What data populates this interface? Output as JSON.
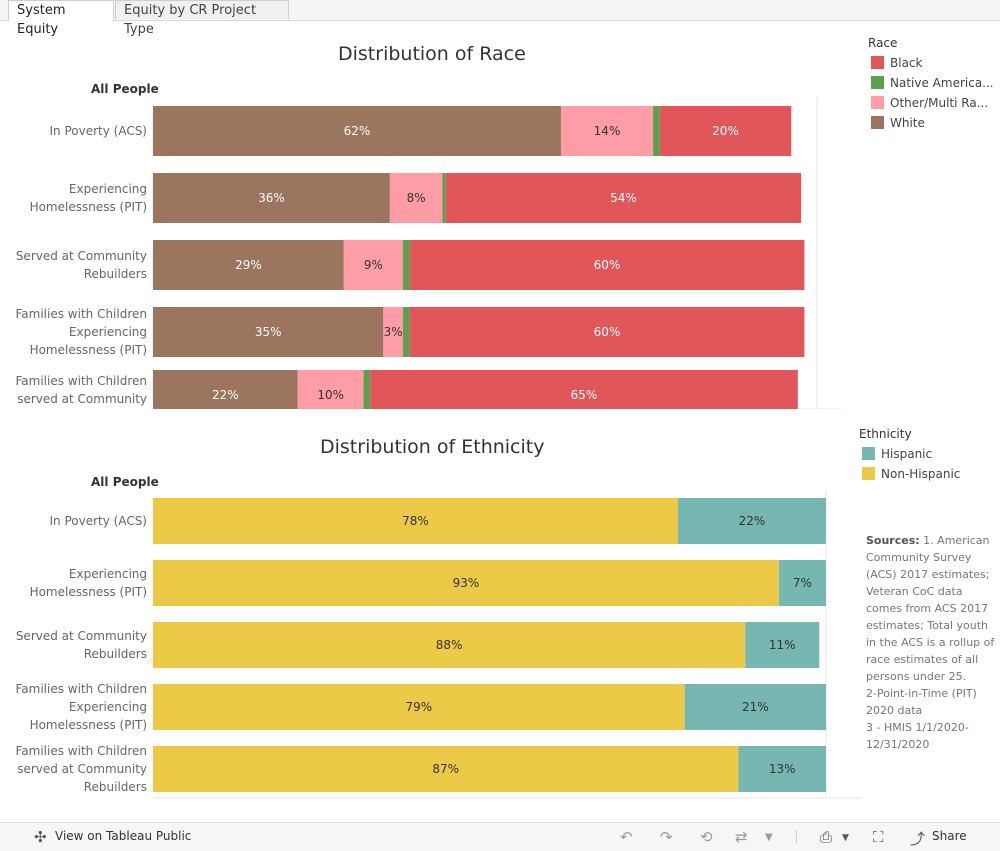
{
  "tabs": [
    {
      "label": "System Equity"
    },
    {
      "label": "Equity by CR Project Type"
    }
  ],
  "race_chart": {
    "title": "Distribution of Race",
    "group_label": "All People"
  },
  "ethnicity_chart": {
    "title": "Distribution of Ethnicity",
    "group_label": "All People"
  },
  "race_legend": {
    "title": "Race",
    "items": [
      {
        "label": "Black",
        "color": "#e15759"
      },
      {
        "label": "Native America...",
        "color": "#59a14f"
      },
      {
        "label": "Other/Multi Ra...",
        "color": "#ff9da7"
      },
      {
        "label": "White",
        "color": "#9c755f"
      }
    ]
  },
  "ethnicity_legend": {
    "title": "Ethnicity",
    "items": [
      {
        "label": "Hispanic",
        "color": "#76b7b2"
      },
      {
        "label": "Non-Hispanic",
        "color": "#edc948"
      }
    ]
  },
  "sources": {
    "label": "Sources:",
    "text": "1. American Community Survey (ACS) 2017 estimates; Veteran CoC data comes from ACS 2017 estimates; Total youth in the ACS is a rollup of race estimates of all persons under 25.",
    "line2": "2-Point-in-Time (PIT) 2020 data",
    "line3": "3 - HMIS 1/1/2020-12/31/2020"
  },
  "footer": {
    "view_label": "View on Tableau Public",
    "share_label": "Share"
  },
  "chart_data": [
    {
      "type": "bar",
      "orientation": "horizontal",
      "stacked": true,
      "title": "Distribution of Race",
      "categories": [
        "In Poverty (ACS)",
        "Experiencing Homelessness (PIT)",
        "Served at Community Rebuilders",
        "Families with Children Experiencing Homelessness (PIT)",
        "Families with Children served at Community"
      ],
      "category_lines": [
        [
          "In Poverty (ACS)"
        ],
        [
          "Experiencing",
          "Homelessness (PIT)"
        ],
        [
          "Served at Community",
          "Rebuilders"
        ],
        [
          "Families with Children",
          "Experiencing",
          "Homelessness (PIT)"
        ],
        [
          "Families with Children",
          "served at Community"
        ]
      ],
      "series": [
        {
          "name": "White",
          "color": "#9c755f",
          "values": [
            62,
            36,
            29,
            35,
            22
          ],
          "labels": [
            "62%",
            "36%",
            "29%",
            "35%",
            "22%"
          ]
        },
        {
          "name": "Other/Multi Ra...",
          "color": "#ff9da7",
          "values": [
            14,
            8,
            9,
            3,
            10
          ],
          "labels": [
            "14%",
            "8%",
            "9%",
            "3%",
            "10%"
          ]
        },
        {
          "name": "Native America...",
          "color": "#59a14f",
          "values": [
            1,
            0.5,
            1,
            1,
            1
          ],
          "labels": [
            "",
            "",
            "",
            "",
            ""
          ]
        },
        {
          "name": "Black",
          "color": "#e15759",
          "values": [
            20,
            54,
            60,
            60,
            65
          ],
          "labels": [
            "20%",
            "54%",
            "60%",
            "60%",
            "65%"
          ]
        }
      ],
      "xlim": [
        0,
        100
      ]
    },
    {
      "type": "bar",
      "orientation": "horizontal",
      "stacked": true,
      "title": "Distribution of Ethnicity",
      "categories": [
        "In Poverty (ACS)",
        "Experiencing Homelessness (PIT)",
        "Served at Community Rebuilders",
        "Families with Children Experiencing Homelessness (PIT)",
        "Families with Children served at Community Rebuilders"
      ],
      "category_lines": [
        [
          "In Poverty (ACS)"
        ],
        [
          "Experiencing",
          "Homelessness (PIT)"
        ],
        [
          "Served at Community",
          "Rebuilders"
        ],
        [
          "Families with Children",
          "Experiencing",
          "Homelessness (PIT)"
        ],
        [
          "Families with Children",
          "served at Community",
          "Rebuilders"
        ]
      ],
      "series": [
        {
          "name": "Non-Hispanic",
          "color": "#edc948",
          "values": [
            78,
            93,
            88,
            79,
            87
          ],
          "labels": [
            "78%",
            "93%",
            "88%",
            "79%",
            "87%"
          ]
        },
        {
          "name": "Hispanic",
          "color": "#76b7b2",
          "values": [
            22,
            7,
            11,
            21,
            13
          ],
          "labels": [
            "22%",
            "7%",
            "11%",
            "21%",
            "13%"
          ]
        }
      ],
      "xlim": [
        0,
        100
      ]
    }
  ]
}
